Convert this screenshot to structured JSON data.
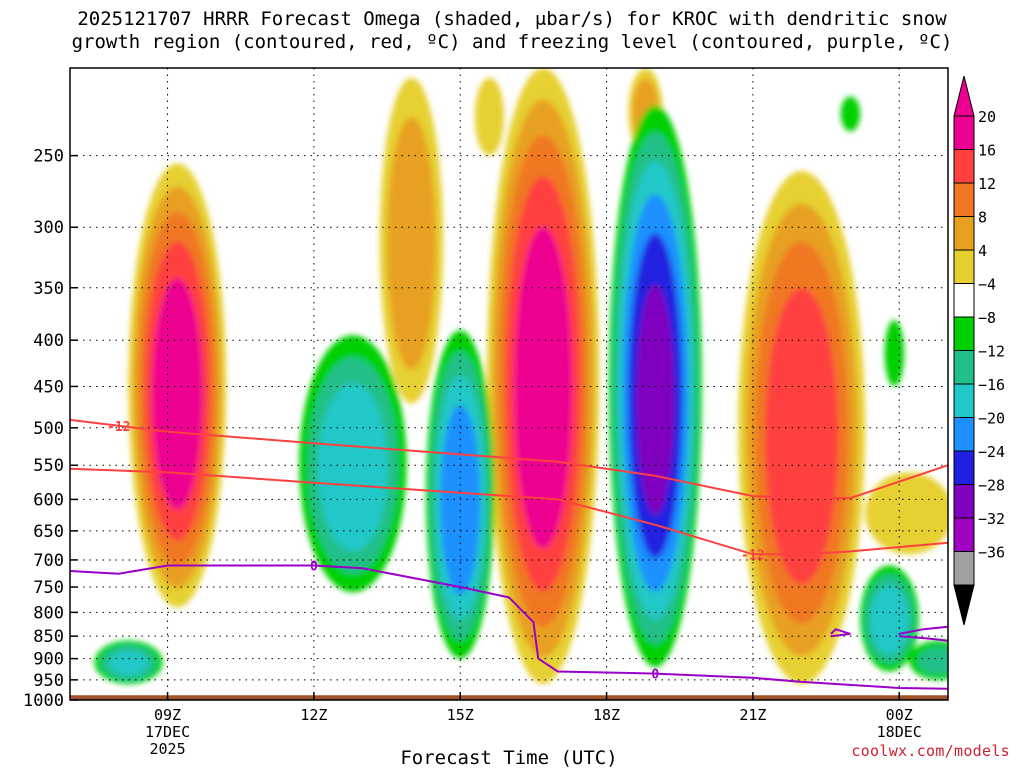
{
  "title_line1": "2025121707 HRRR Forecast Omega (shaded, μbar/s) for KROC with dendritic snow",
  "title_line2": "growth region (contoured, red, ºC) and freezing level (contoured, purple, ºC)",
  "credit": "coolwx.com/models",
  "colors": {
    "ground": "#a0522d",
    "red_contour": "#ff4040",
    "purple_contour": "#9b00c8",
    "grid": "#000000"
  },
  "chart_data": {
    "type": "heatmap",
    "xlabel": "Forecast Time (UTC)",
    "ylabel": "",
    "x_range_hours": [
      7,
      25
    ],
    "y_axis_scale": "log-pressure",
    "y_range_hpa": [
      1000,
      200
    ],
    "grid": true,
    "x_ticks": [
      {
        "hour": 9,
        "label": "09Z",
        "sub1": "17DEC",
        "sub2": "2025"
      },
      {
        "hour": 12,
        "label": "12Z",
        "sub1": "",
        "sub2": ""
      },
      {
        "hour": 15,
        "label": "15Z",
        "sub1": "",
        "sub2": ""
      },
      {
        "hour": 18,
        "label": "18Z",
        "sub1": "",
        "sub2": ""
      },
      {
        "hour": 21,
        "label": "21Z",
        "sub1": "",
        "sub2": ""
      },
      {
        "hour": 24,
        "label": "00Z",
        "sub1": "18DEC",
        "sub2": ""
      }
    ],
    "y_ticks": [
      {
        "p": 250,
        "label": "250"
      },
      {
        "p": 300,
        "label": "300"
      },
      {
        "p": 350,
        "label": "350"
      },
      {
        "p": 400,
        "label": "400"
      },
      {
        "p": 450,
        "label": "450"
      },
      {
        "p": 500,
        "label": "500"
      },
      {
        "p": 550,
        "label": "550"
      },
      {
        "p": 600,
        "label": "600"
      },
      {
        "p": 650,
        "label": "650"
      },
      {
        "p": 700,
        "label": "700"
      },
      {
        "p": 750,
        "label": "750"
      },
      {
        "p": 800,
        "label": "800"
      },
      {
        "p": 850,
        "label": "850"
      },
      {
        "p": 900,
        "label": "900"
      },
      {
        "p": 950,
        "label": "950"
      },
      {
        "p": 1000,
        "label": "1000"
      }
    ],
    "colorbar": {
      "units": "μbar/s",
      "labels": [
        "20",
        "16",
        "12",
        "8",
        "4",
        "−4",
        "−8",
        "−12",
        "−16",
        "−20",
        "−24",
        "−28",
        "−32",
        "−36"
      ],
      "bins": [
        {
          "color": "#ee0090"
        },
        {
          "color": "#ff4040"
        },
        {
          "color": "#f07820"
        },
        {
          "color": "#e8a020"
        },
        {
          "color": "#e6d030"
        },
        {
          "color": "#ffffff"
        },
        {
          "color": "#00d000"
        },
        {
          "color": "#20c088"
        },
        {
          "color": "#20c8c8"
        },
        {
          "color": "#1e90ff"
        },
        {
          "color": "#2020e0"
        },
        {
          "color": "#8000c0"
        },
        {
          "color": "#a000c0"
        },
        {
          "color": "#a0a0a0"
        }
      ],
      "top_arrow_color": "#ee0090",
      "bottom_arrow_color": "#000000"
    },
    "omega_features": [
      {
        "hour": 9.2,
        "p_top": 255,
        "p_bot": 790,
        "width_h": 2.0,
        "peak": 22
      },
      {
        "hour": 14.0,
        "p_top": 205,
        "p_bot": 470,
        "width_h": 1.3,
        "peak": 10
      },
      {
        "hour": 15.6,
        "p_top": 205,
        "p_bot": 250,
        "width_h": 0.6,
        "peak": 6
      },
      {
        "hour": 16.7,
        "p_top": 200,
        "p_bot": 960,
        "width_h": 2.3,
        "peak": 22
      },
      {
        "hour": 22.0,
        "p_top": 260,
        "p_bot": 960,
        "width_h": 2.6,
        "peak": 18
      },
      {
        "hour": 24.2,
        "p_top": 560,
        "p_bot": 690,
        "width_h": 1.8,
        "peak": 6
      },
      {
        "hour": 18.8,
        "p_top": 200,
        "p_bot": 250,
        "width_h": 0.7,
        "peak": 10
      },
      {
        "hour": 12.8,
        "p_top": 395,
        "p_bot": 760,
        "width_h": 2.2,
        "peak": -14
      },
      {
        "hour": 15.0,
        "p_top": 390,
        "p_bot": 900,
        "width_h": 1.4,
        "peak": -18
      },
      {
        "hour": 19.0,
        "p_top": 220,
        "p_bot": 920,
        "width_h": 1.9,
        "peak": -24
      },
      {
        "hour": 8.2,
        "p_top": 860,
        "p_bot": 960,
        "width_h": 1.4,
        "peak": -12
      },
      {
        "hour": 23.8,
        "p_top": 710,
        "p_bot": 930,
        "width_h": 1.2,
        "peak": -14
      },
      {
        "hour": 24.8,
        "p_top": 860,
        "p_bot": 950,
        "width_h": 1.2,
        "peak": -8
      },
      {
        "hour": 23.9,
        "p_top": 380,
        "p_bot": 450,
        "width_h": 0.4,
        "peak": -6
      },
      {
        "hour": 23.0,
        "p_top": 215,
        "p_bot": 235,
        "width_h": 0.4,
        "peak": -6
      }
    ],
    "dgz_contours": [
      {
        "label": "-12",
        "label_hour": 8.0,
        "points": [
          [
            7,
            490
          ],
          [
            9,
            505
          ],
          [
            12,
            520
          ],
          [
            15,
            535
          ],
          [
            17,
            545
          ],
          [
            19,
            565
          ],
          [
            21,
            595
          ],
          [
            22,
            598
          ],
          [
            23,
            598
          ],
          [
            25,
            550
          ]
        ]
      },
      {
        "label": "-12",
        "label_hour": 21.0,
        "points": [
          [
            7,
            555
          ],
          [
            9,
            560
          ],
          [
            12,
            575
          ],
          [
            15,
            590
          ],
          [
            17,
            600
          ],
          [
            19,
            640
          ],
          [
            21,
            690
          ],
          [
            22,
            690
          ],
          [
            23,
            685
          ],
          [
            25,
            670
          ]
        ]
      }
    ],
    "freezing_level": {
      "label": "0",
      "label_hours": [
        12.0,
        19.0
      ],
      "points": [
        [
          7,
          720
        ],
        [
          8,
          725
        ],
        [
          9,
          710
        ],
        [
          12,
          710
        ],
        [
          13,
          715
        ],
        [
          15,
          750
        ],
        [
          16,
          770
        ],
        [
          16.5,
          820
        ],
        [
          16.6,
          900
        ],
        [
          17,
          930
        ],
        [
          19,
          935
        ],
        [
          21,
          945
        ],
        [
          22,
          955
        ],
        [
          24,
          970
        ],
        [
          25,
          972
        ]
      ],
      "extra_segments": [
        {
          "points": [
            [
              22.6,
              845
            ],
            [
              22.7,
              835
            ],
            [
              23.0,
              845
            ],
            [
              22.6,
              850
            ]
          ]
        },
        {
          "points": [
            [
              24.0,
              845
            ],
            [
              24.5,
              835
            ],
            [
              25.0,
              830
            ]
          ]
        },
        {
          "points": [
            [
              24.0,
              850
            ],
            [
              24.6,
              855
            ],
            [
              25.0,
              860
            ]
          ]
        }
      ]
    },
    "ground_level_hpa": 988
  }
}
